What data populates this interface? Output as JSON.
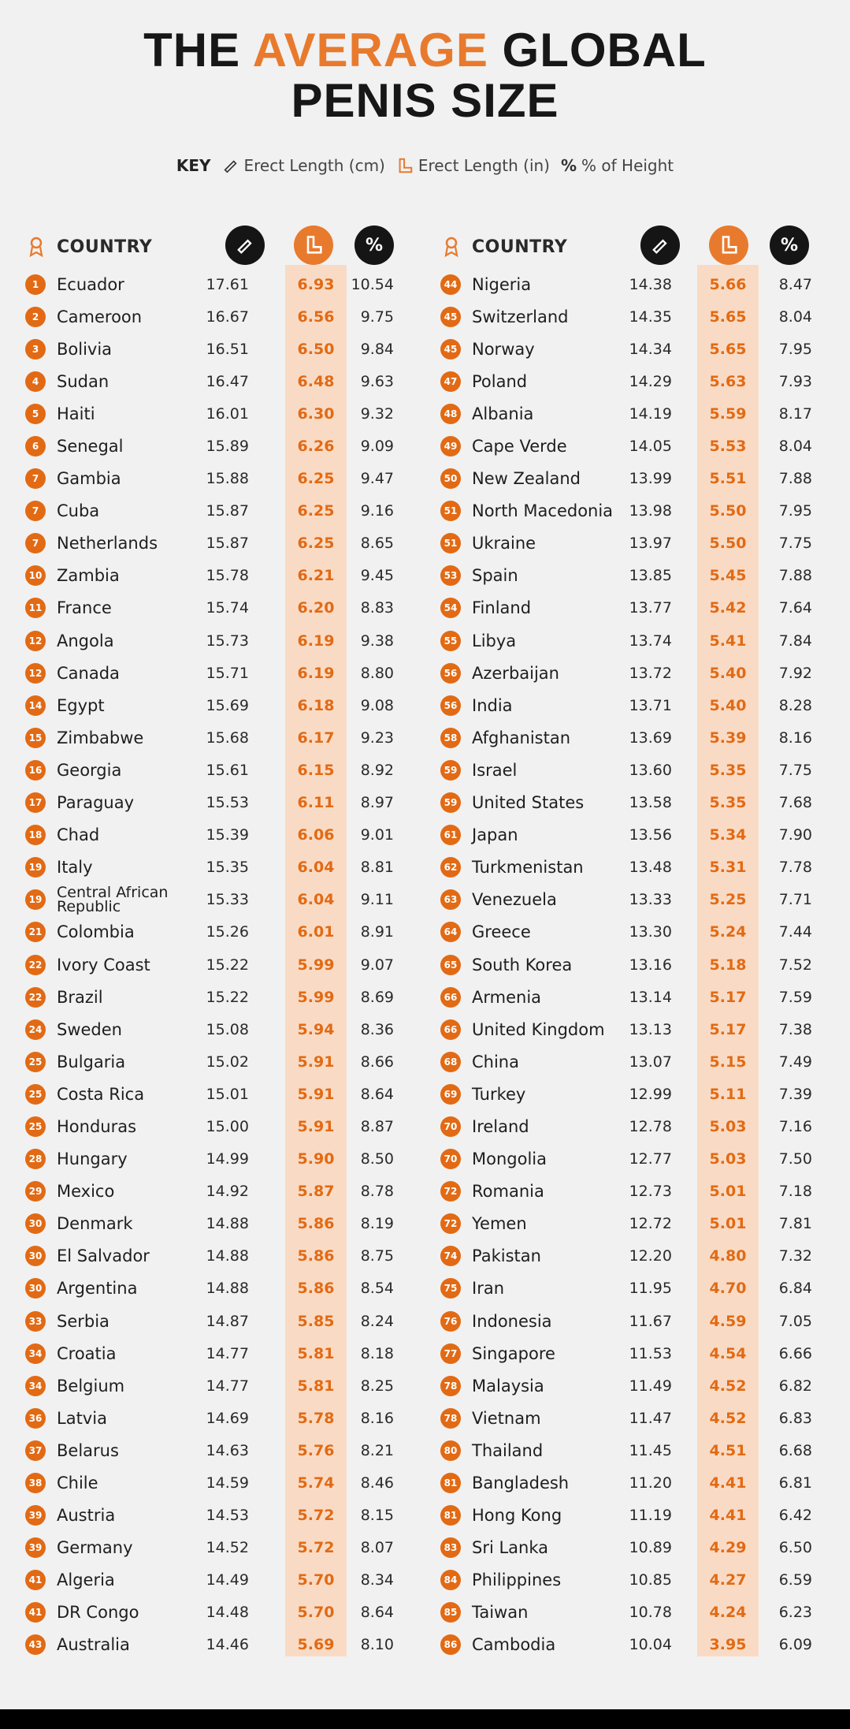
{
  "title": {
    "line1_pre": "THE",
    "line1_accent": "AVERAGE",
    "line1_post": "GLOBAL",
    "line2": "PENIS SIZE"
  },
  "key": {
    "label": "KEY",
    "cm": "Erect Length (cm)",
    "in": "Erect Length (in)",
    "pct": "% of Height"
  },
  "header": {
    "country": "COUNTRY",
    "pct_symbol": "%"
  },
  "colors": {
    "accent": "#e87a2e",
    "rank_badge": "#e26a14",
    "highlight_column": "#f9dbc5",
    "dark_circle": "#151515"
  },
  "chart_data": {
    "type": "table",
    "title": "THE AVERAGE GLOBAL PENIS SIZE",
    "columns": [
      "COUNTRY",
      "Erect Length (cm)",
      "Erect Length (in)",
      "% of Height"
    ],
    "rows": [
      {
        "rank": "1",
        "country": "Ecuador",
        "cm": "17.61",
        "in": "6.93",
        "pct": "10.54"
      },
      {
        "rank": "2",
        "country": "Cameroon",
        "cm": "16.67",
        "in": "6.56",
        "pct": "9.75"
      },
      {
        "rank": "3",
        "country": "Bolivia",
        "cm": "16.51",
        "in": "6.50",
        "pct": "9.84"
      },
      {
        "rank": "4",
        "country": "Sudan",
        "cm": "16.47",
        "in": "6.48",
        "pct": "9.63"
      },
      {
        "rank": "5",
        "country": "Haiti",
        "cm": "16.01",
        "in": "6.30",
        "pct": "9.32"
      },
      {
        "rank": "6",
        "country": "Senegal",
        "cm": "15.89",
        "in": "6.26",
        "pct": "9.09"
      },
      {
        "rank": "7",
        "country": "Gambia",
        "cm": "15.88",
        "in": "6.25",
        "pct": "9.47"
      },
      {
        "rank": "7",
        "country": "Cuba",
        "cm": "15.87",
        "in": "6.25",
        "pct": "9.16"
      },
      {
        "rank": "7",
        "country": "Netherlands",
        "cm": "15.87",
        "in": "6.25",
        "pct": "8.65"
      },
      {
        "rank": "10",
        "country": "Zambia",
        "cm": "15.78",
        "in": "6.21",
        "pct": "9.45"
      },
      {
        "rank": "11",
        "country": "France",
        "cm": "15.74",
        "in": "6.20",
        "pct": "8.83"
      },
      {
        "rank": "12",
        "country": "Angola",
        "cm": "15.73",
        "in": "6.19",
        "pct": "9.38"
      },
      {
        "rank": "12",
        "country": "Canada",
        "cm": "15.71",
        "in": "6.19",
        "pct": "8.80"
      },
      {
        "rank": "14",
        "country": "Egypt",
        "cm": "15.69",
        "in": "6.18",
        "pct": "9.08"
      },
      {
        "rank": "15",
        "country": "Zimbabwe",
        "cm": "15.68",
        "in": "6.17",
        "pct": "9.23"
      },
      {
        "rank": "16",
        "country": "Georgia",
        "cm": "15.61",
        "in": "6.15",
        "pct": "8.92"
      },
      {
        "rank": "17",
        "country": "Paraguay",
        "cm": "15.53",
        "in": "6.11",
        "pct": "8.97"
      },
      {
        "rank": "18",
        "country": "Chad",
        "cm": "15.39",
        "in": "6.06",
        "pct": "9.01"
      },
      {
        "rank": "19",
        "country": "Italy",
        "cm": "15.35",
        "in": "6.04",
        "pct": "8.81"
      },
      {
        "rank": "19",
        "country": "Central African Republic",
        "cm": "15.33",
        "in": "6.04",
        "pct": "9.11"
      },
      {
        "rank": "21",
        "country": "Colombia",
        "cm": "15.26",
        "in": "6.01",
        "pct": "8.91"
      },
      {
        "rank": "22",
        "country": "Ivory Coast",
        "cm": "15.22",
        "in": "5.99",
        "pct": "9.07"
      },
      {
        "rank": "22",
        "country": "Brazil",
        "cm": "15.22",
        "in": "5.99",
        "pct": "8.69"
      },
      {
        "rank": "24",
        "country": "Sweden",
        "cm": "15.08",
        "in": "5.94",
        "pct": "8.36"
      },
      {
        "rank": "25",
        "country": "Bulgaria",
        "cm": "15.02",
        "in": "5.91",
        "pct": "8.66"
      },
      {
        "rank": "25",
        "country": "Costa Rica",
        "cm": "15.01",
        "in": "5.91",
        "pct": "8.64"
      },
      {
        "rank": "25",
        "country": "Honduras",
        "cm": "15.00",
        "in": "5.91",
        "pct": "8.87"
      },
      {
        "rank": "28",
        "country": "Hungary",
        "cm": "14.99",
        "in": "5.90",
        "pct": "8.50"
      },
      {
        "rank": "29",
        "country": "Mexico",
        "cm": "14.92",
        "in": "5.87",
        "pct": "8.78"
      },
      {
        "rank": "30",
        "country": "Denmark",
        "cm": "14.88",
        "in": "5.86",
        "pct": "8.19"
      },
      {
        "rank": "30",
        "country": "El Salvador",
        "cm": "14.88",
        "in": "5.86",
        "pct": "8.75"
      },
      {
        "rank": "30",
        "country": "Argentina",
        "cm": "14.88",
        "in": "5.86",
        "pct": "8.54"
      },
      {
        "rank": "33",
        "country": "Serbia",
        "cm": "14.87",
        "in": "5.85",
        "pct": "8.24"
      },
      {
        "rank": "34",
        "country": "Croatia",
        "cm": "14.77",
        "in": "5.81",
        "pct": "8.18"
      },
      {
        "rank": "34",
        "country": "Belgium",
        "cm": "14.77",
        "in": "5.81",
        "pct": "8.25"
      },
      {
        "rank": "36",
        "country": "Latvia",
        "cm": "14.69",
        "in": "5.78",
        "pct": "8.16"
      },
      {
        "rank": "37",
        "country": "Belarus",
        "cm": "14.63",
        "in": "5.76",
        "pct": "8.21"
      },
      {
        "rank": "38",
        "country": "Chile",
        "cm": "14.59",
        "in": "5.74",
        "pct": "8.46"
      },
      {
        "rank": "39",
        "country": "Austria",
        "cm": "14.53",
        "in": "5.72",
        "pct": "8.15"
      },
      {
        "rank": "39",
        "country": "Germany",
        "cm": "14.52",
        "in": "5.72",
        "pct": "8.07"
      },
      {
        "rank": "41",
        "country": "Algeria",
        "cm": "14.49",
        "in": "5.70",
        "pct": "8.34"
      },
      {
        "rank": "41",
        "country": "DR Congo",
        "cm": "14.48",
        "in": "5.70",
        "pct": "8.64"
      },
      {
        "rank": "43",
        "country": "Australia",
        "cm": "14.46",
        "in": "5.69",
        "pct": "8.10"
      },
      {
        "rank": "44",
        "country": "Nigeria",
        "cm": "14.38",
        "in": "5.66",
        "pct": "8.47"
      },
      {
        "rank": "45",
        "country": "Switzerland",
        "cm": "14.35",
        "in": "5.65",
        "pct": "8.04"
      },
      {
        "rank": "45",
        "country": "Norway",
        "cm": "14.34",
        "in": "5.65",
        "pct": "7.95"
      },
      {
        "rank": "47",
        "country": "Poland",
        "cm": "14.29",
        "in": "5.63",
        "pct": "7.93"
      },
      {
        "rank": "48",
        "country": "Albania",
        "cm": "14.19",
        "in": "5.59",
        "pct": "8.17"
      },
      {
        "rank": "49",
        "country": "Cape Verde",
        "cm": "14.05",
        "in": "5.53",
        "pct": "8.04"
      },
      {
        "rank": "50",
        "country": "New Zealand",
        "cm": "13.99",
        "in": "5.51",
        "pct": "7.88"
      },
      {
        "rank": "51",
        "country": "North Macedonia",
        "cm": "13.98",
        "in": "5.50",
        "pct": "7.95"
      },
      {
        "rank": "51",
        "country": "Ukraine",
        "cm": "13.97",
        "in": "5.50",
        "pct": "7.75"
      },
      {
        "rank": "53",
        "country": "Spain",
        "cm": "13.85",
        "in": "5.45",
        "pct": "7.88"
      },
      {
        "rank": "54",
        "country": "Finland",
        "cm": "13.77",
        "in": "5.42",
        "pct": "7.64"
      },
      {
        "rank": "55",
        "country": "Libya",
        "cm": "13.74",
        "in": "5.41",
        "pct": "7.84"
      },
      {
        "rank": "56",
        "country": "Azerbaijan",
        "cm": "13.72",
        "in": "5.40",
        "pct": "7.92"
      },
      {
        "rank": "56",
        "country": "India",
        "cm": "13.71",
        "in": "5.40",
        "pct": "8.28"
      },
      {
        "rank": "58",
        "country": "Afghanistan",
        "cm": "13.69",
        "in": "5.39",
        "pct": "8.16"
      },
      {
        "rank": "59",
        "country": "Israel",
        "cm": "13.60",
        "in": "5.35",
        "pct": "7.75"
      },
      {
        "rank": "59",
        "country": "United States",
        "cm": "13.58",
        "in": "5.35",
        "pct": "7.68"
      },
      {
        "rank": "61",
        "country": "Japan",
        "cm": "13.56",
        "in": "5.34",
        "pct": "7.90"
      },
      {
        "rank": "62",
        "country": "Turkmenistan",
        "cm": "13.48",
        "in": "5.31",
        "pct": "7.78"
      },
      {
        "rank": "63",
        "country": "Venezuela",
        "cm": "13.33",
        "in": "5.25",
        "pct": "7.71"
      },
      {
        "rank": "64",
        "country": "Greece",
        "cm": "13.30",
        "in": "5.24",
        "pct": "7.44"
      },
      {
        "rank": "65",
        "country": "South Korea",
        "cm": "13.16",
        "in": "5.18",
        "pct": "7.52"
      },
      {
        "rank": "66",
        "country": "Armenia",
        "cm": "13.14",
        "in": "5.17",
        "pct": "7.59"
      },
      {
        "rank": "66",
        "country": "United Kingdom",
        "cm": "13.13",
        "in": "5.17",
        "pct": "7.38"
      },
      {
        "rank": "68",
        "country": "China",
        "cm": "13.07",
        "in": "5.15",
        "pct": "7.49"
      },
      {
        "rank": "69",
        "country": "Turkey",
        "cm": "12.99",
        "in": "5.11",
        "pct": "7.39"
      },
      {
        "rank": "70",
        "country": "Ireland",
        "cm": "12.78",
        "in": "5.03",
        "pct": "7.16"
      },
      {
        "rank": "70",
        "country": "Mongolia",
        "cm": "12.77",
        "in": "5.03",
        "pct": "7.50"
      },
      {
        "rank": "72",
        "country": "Romania",
        "cm": "12.73",
        "in": "5.01",
        "pct": "7.18"
      },
      {
        "rank": "72",
        "country": "Yemen",
        "cm": "12.72",
        "in": "5.01",
        "pct": "7.81"
      },
      {
        "rank": "74",
        "country": "Pakistan",
        "cm": "12.20",
        "in": "4.80",
        "pct": "7.32"
      },
      {
        "rank": "75",
        "country": "Iran",
        "cm": "11.95",
        "in": "4.70",
        "pct": "6.84"
      },
      {
        "rank": "76",
        "country": "Indonesia",
        "cm": "11.67",
        "in": "4.59",
        "pct": "7.05"
      },
      {
        "rank": "77",
        "country": "Singapore",
        "cm": "11.53",
        "in": "4.54",
        "pct": "6.66"
      },
      {
        "rank": "78",
        "country": "Malaysia",
        "cm": "11.49",
        "in": "4.52",
        "pct": "6.82"
      },
      {
        "rank": "78",
        "country": "Vietnam",
        "cm": "11.47",
        "in": "4.52",
        "pct": "6.83"
      },
      {
        "rank": "80",
        "country": "Thailand",
        "cm": "11.45",
        "in": "4.51",
        "pct": "6.68"
      },
      {
        "rank": "81",
        "country": "Bangladesh",
        "cm": "11.20",
        "in": "4.41",
        "pct": "6.81"
      },
      {
        "rank": "81",
        "country": "Hong Kong",
        "cm": "11.19",
        "in": "4.41",
        "pct": "6.42"
      },
      {
        "rank": "83",
        "country": "Sri Lanka",
        "cm": "10.89",
        "in": "4.29",
        "pct": "6.50"
      },
      {
        "rank": "84",
        "country": "Philippines",
        "cm": "10.85",
        "in": "4.27",
        "pct": "6.59"
      },
      {
        "rank": "85",
        "country": "Taiwan",
        "cm": "10.78",
        "in": "4.24",
        "pct": "6.23"
      },
      {
        "rank": "86",
        "country": "Cambodia",
        "cm": "10.04",
        "in": "3.95",
        "pct": "6.09"
      }
    ]
  }
}
